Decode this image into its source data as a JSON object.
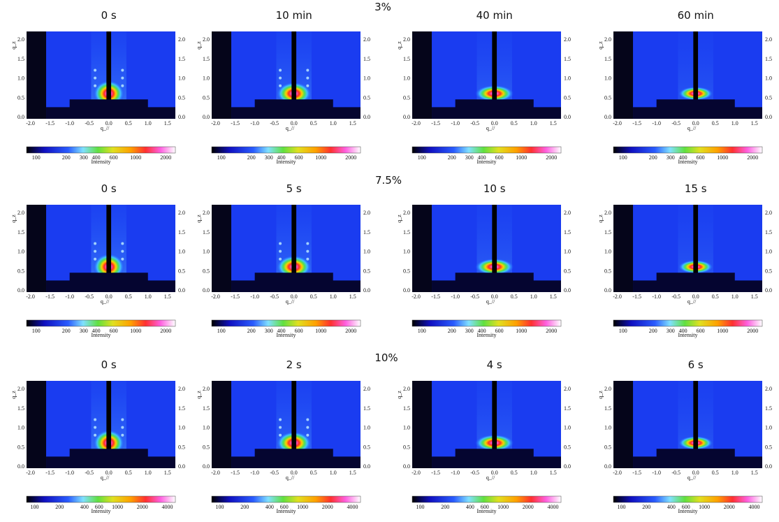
{
  "figure": {
    "axes": {
      "xlabel": "q_//",
      "ylabel": "q_z",
      "xticks": [
        "-2.0",
        "-1.5",
        "-1.0",
        "-0.5",
        "0.0",
        "0.5",
        "1.0",
        "1.5"
      ],
      "yticks": [
        "0.0",
        "0.5",
        "1.0",
        "1.5",
        "2.0"
      ],
      "colorbar_label": "Intensity"
    },
    "rows": [
      {
        "label": "3%",
        "panels": [
          "0 s",
          "10 min",
          "40 min",
          "60 min"
        ],
        "colorbar_ticks": [
          "100",
          "200",
          "300",
          "400",
          "600",
          "1000",
          "2000"
        ]
      },
      {
        "label": "7.5%",
        "panels": [
          "0 s",
          "5 s",
          "10 s",
          "15 s"
        ],
        "colorbar_ticks": [
          "100",
          "200",
          "300",
          "400",
          "600",
          "1000",
          "2000"
        ]
      },
      {
        "label": "10%",
        "panels": [
          "0 s",
          "2 s",
          "4 s",
          "6 s"
        ],
        "colorbar_ticks": [
          "100",
          "200",
          "400",
          "600",
          "1000",
          "2000",
          "4000"
        ]
      }
    ]
  }
}
